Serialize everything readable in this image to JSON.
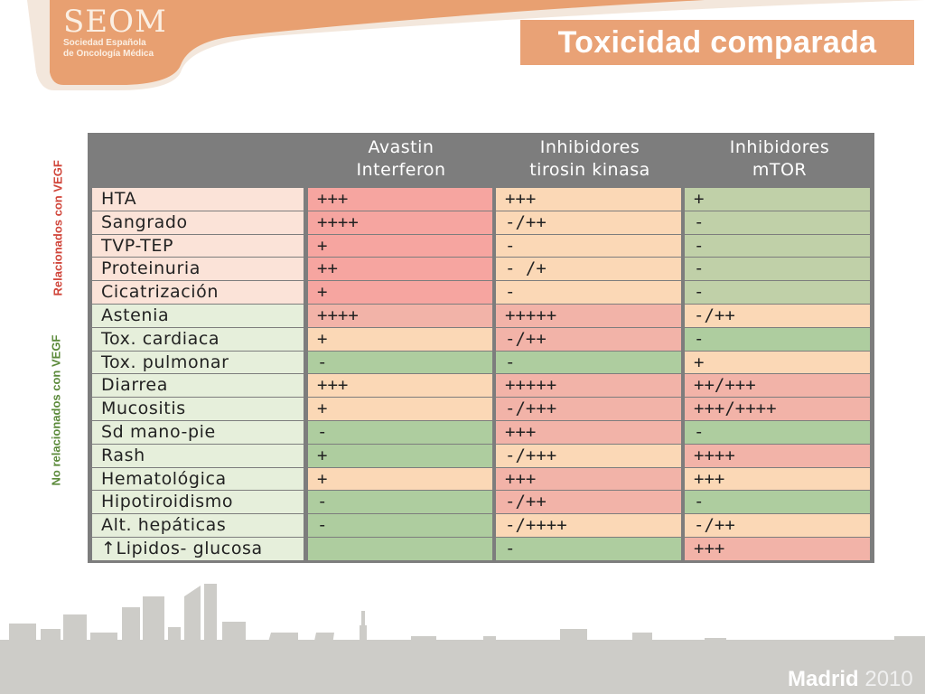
{
  "logo": {
    "name": "SEOM",
    "sub1": "Sociedad Española",
    "sub2": "de Oncología Médica"
  },
  "title": "Toxicidad comparada",
  "side_labels": {
    "related": "Relacionados con VEGF",
    "not_related": "No relacionados con VEGF"
  },
  "header": {
    "col1_line1": "Avastin",
    "col1_line2": "Interferon",
    "col2_line1": "Inhibidores",
    "col2_line2": "tirosin kinasa",
    "col3_line1": "Inhibidores",
    "col3_line2": "mTOR"
  },
  "rows": [
    {
      "label": "HTA",
      "avastin": "+++",
      "tki": "+++",
      "mtor": "+"
    },
    {
      "label": "Sangrado",
      "avastin": "++++",
      "tki": "-/++",
      "mtor": "-"
    },
    {
      "label": "TVP-TEP",
      "avastin": "+",
      "tki": "-",
      "mtor": "-"
    },
    {
      "label": "Proteinuria",
      "avastin": "++",
      "tki": "- /+",
      "mtor": "-"
    },
    {
      "label": "Cicatrización",
      "avastin": "+",
      "tki": "-",
      "mtor": "-"
    },
    {
      "label": "Astenia",
      "avastin": "++++",
      "tki": "+++++",
      "mtor": "-/++"
    },
    {
      "label": "Tox. cardiaca",
      "avastin": "+",
      "tki": "-/++",
      "mtor": "-"
    },
    {
      "label": "Tox. pulmonar",
      "avastin": "-",
      "tki": "-",
      "mtor": "+"
    },
    {
      "label": "Diarrea",
      "avastin": "+++",
      "tki": "+++++",
      "mtor": "++/+++"
    },
    {
      "label": "Mucositis",
      "avastin": "+",
      "tki": "-/+++",
      "mtor": "+++/++++"
    },
    {
      "label": "Sd mano-pie",
      "avastin": "-",
      "tki": "+++",
      "mtor": "-"
    },
    {
      "label": "Rash",
      "avastin": "+",
      "tki": "-/+++",
      "mtor": "++++"
    },
    {
      "label": "Hematológica",
      "avastin": "+",
      "tki": "+++",
      "mtor": "+++"
    },
    {
      "label": "Hipotiroidismo",
      "avastin": "-",
      "tki": "-/++",
      "mtor": "-"
    },
    {
      "label": "Alt. hepáticas",
      "avastin": "-",
      "tki": "-/++++",
      "mtor": "-/++"
    },
    {
      "label": "↑Lipidos- glucosa",
      "avastin": "",
      "tki": "-",
      "mtor": "+++"
    }
  ],
  "footer": {
    "city": "Madrid",
    "year": "2010"
  }
}
